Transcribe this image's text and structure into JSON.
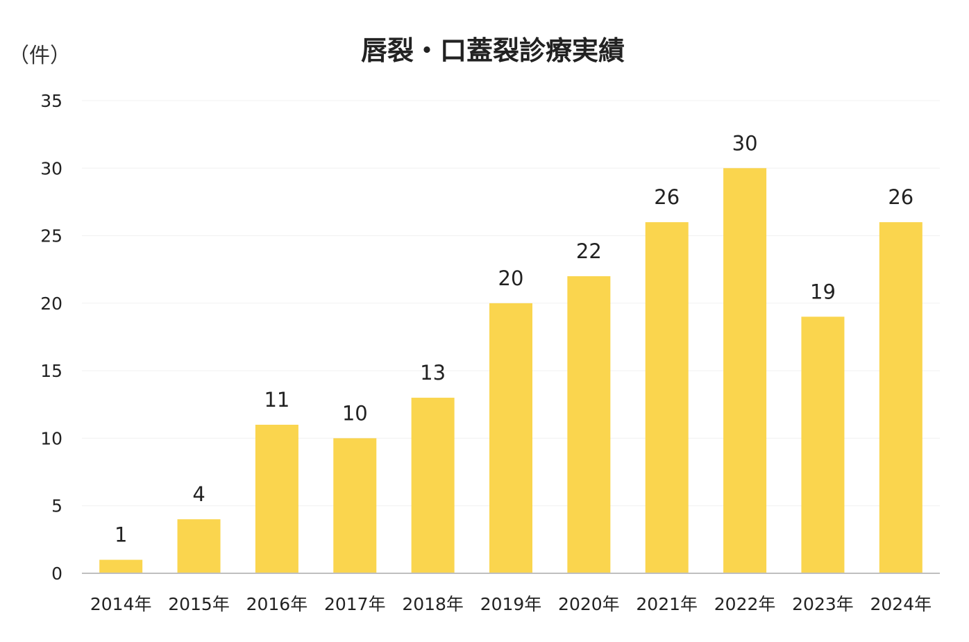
{
  "chart_data": {
    "type": "bar",
    "title": "唇裂・口蓋裂診療実績",
    "unit_label": "（件）",
    "xlabel": "",
    "ylabel": "",
    "categories": [
      "2014年",
      "2015年",
      "2016年",
      "2017年",
      "2018年",
      "2019年",
      "2020年",
      "2021年",
      "2022年",
      "2023年",
      "2024年"
    ],
    "values": [
      1,
      4,
      11,
      10,
      13,
      20,
      22,
      26,
      30,
      19,
      26
    ],
    "ylim": [
      0,
      35
    ],
    "yticks": [
      0,
      5,
      10,
      15,
      20,
      25,
      30,
      35
    ],
    "grid": true,
    "legend": "none",
    "data_labels": true,
    "colors": {
      "bar": "#FAD54E",
      "grid": "#F0F0F0",
      "axis": "#BFBFBF"
    }
  }
}
